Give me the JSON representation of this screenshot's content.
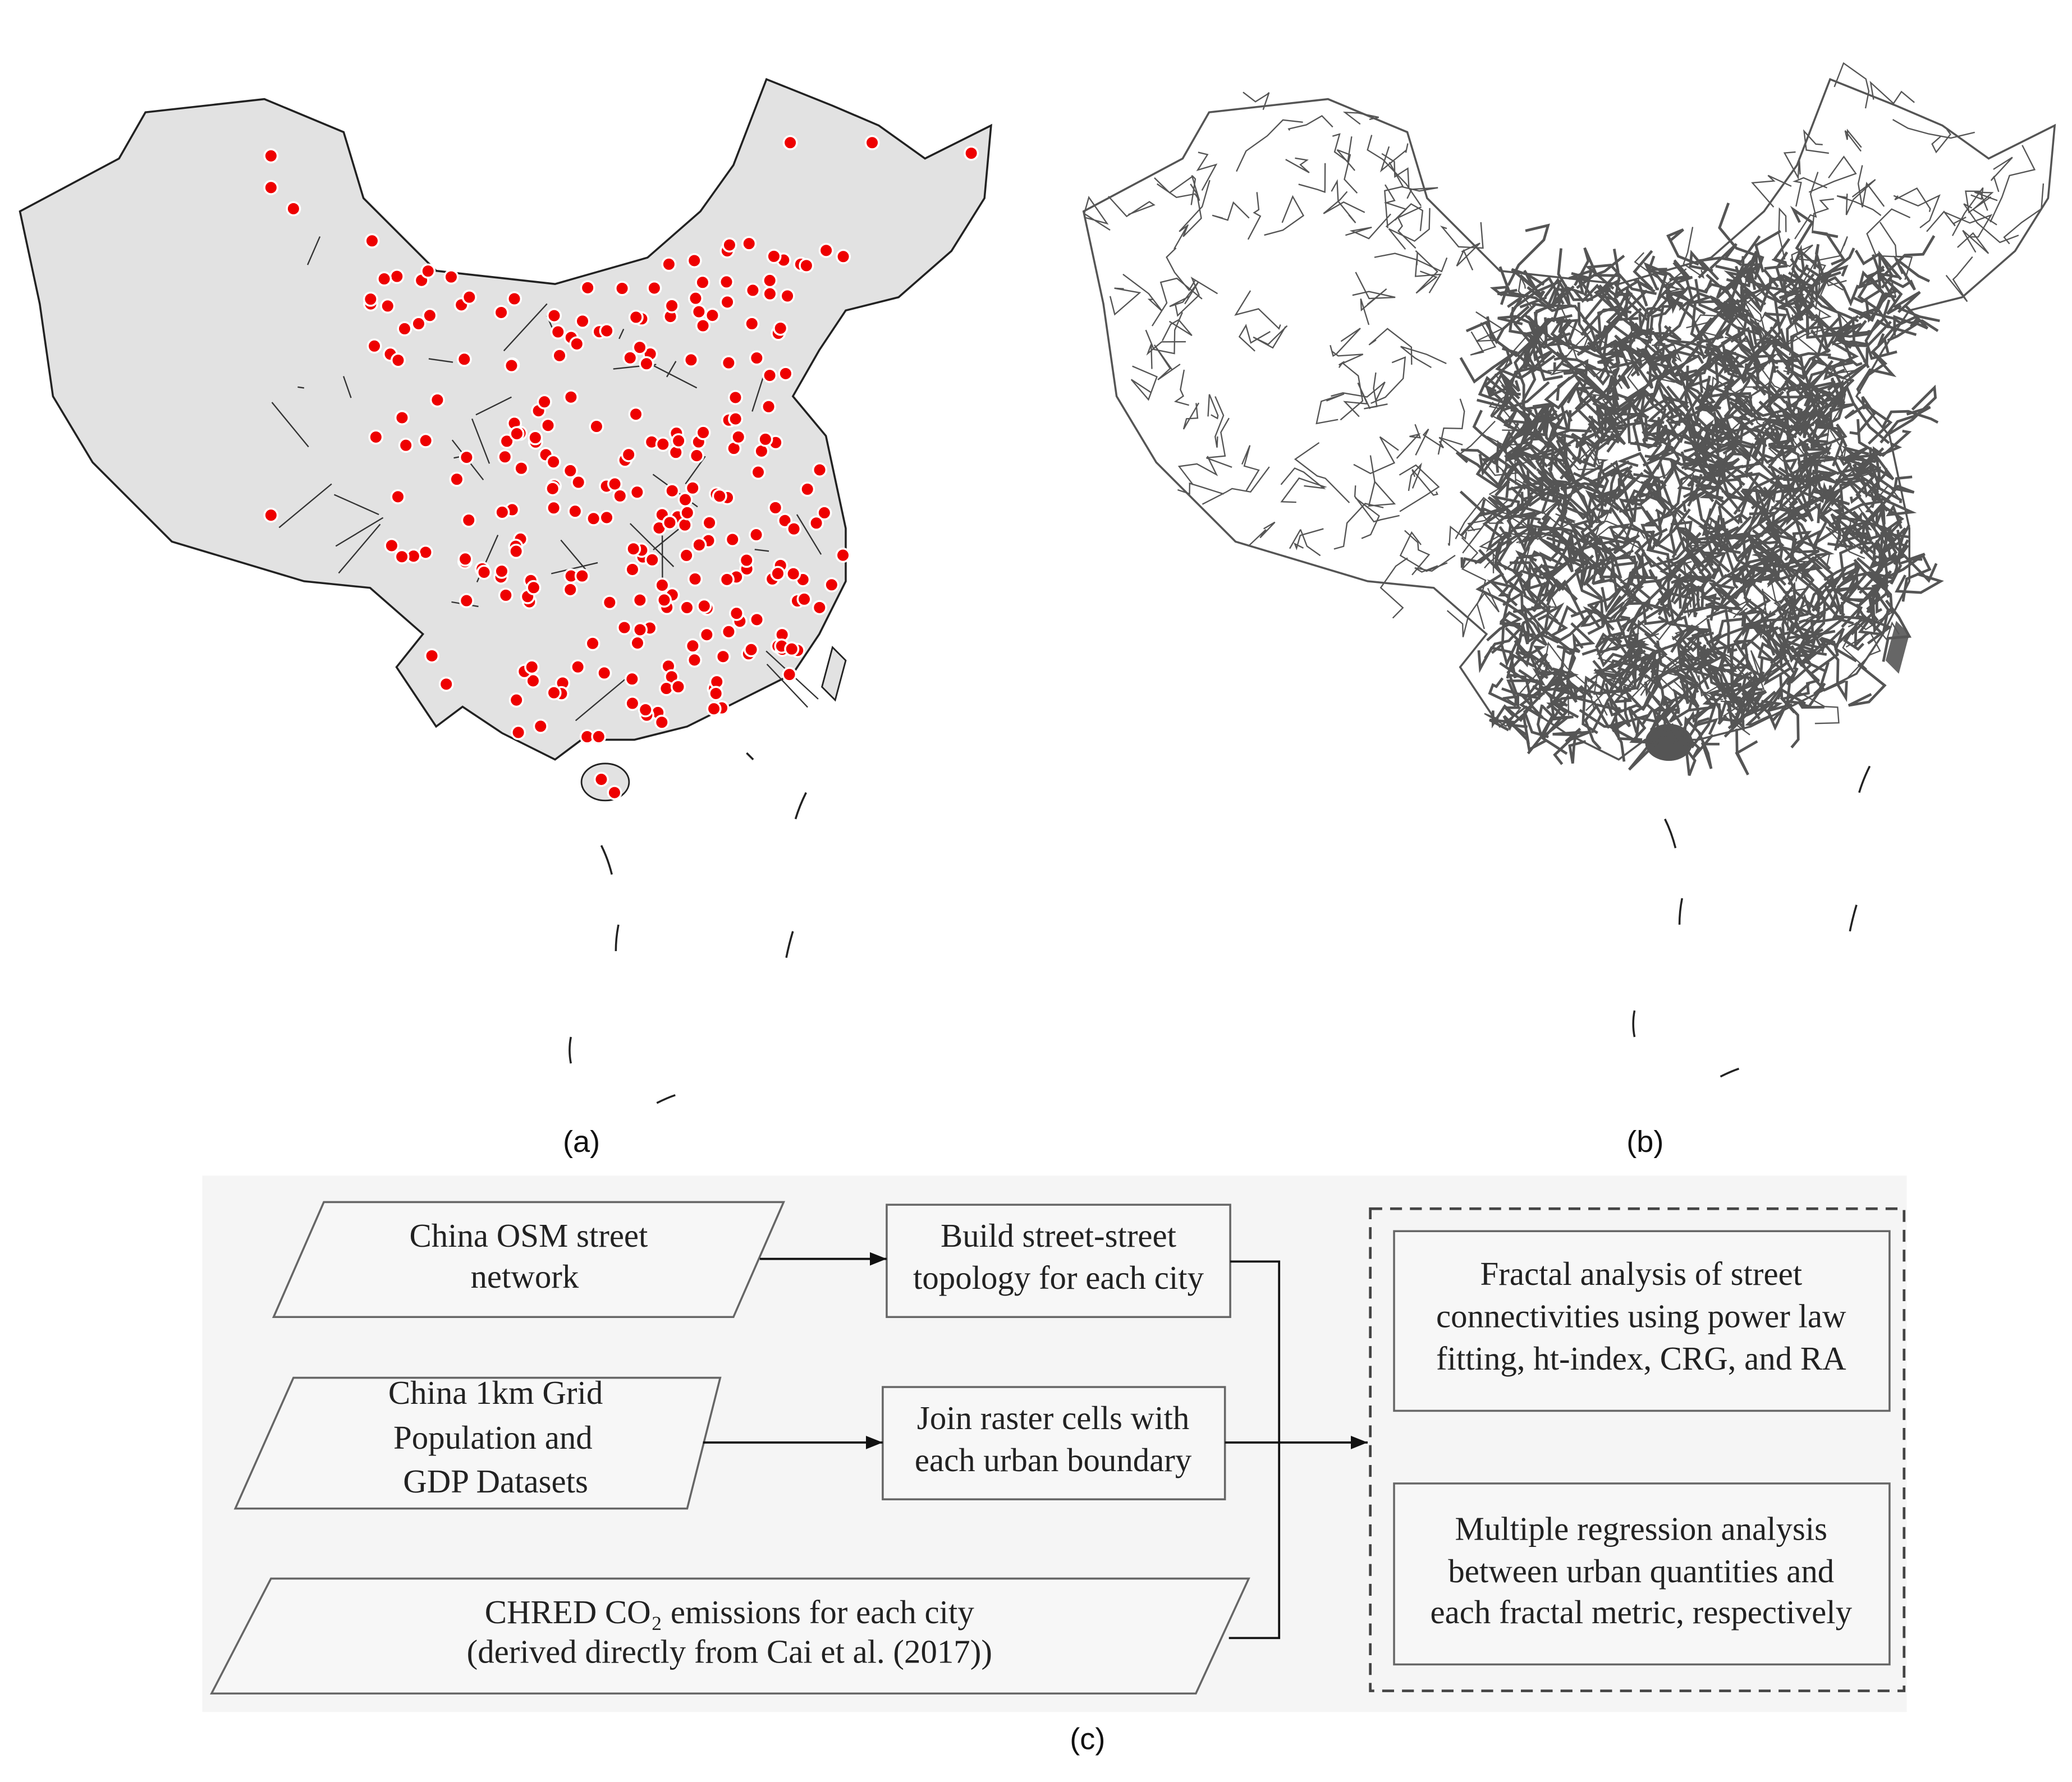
{
  "captions": {
    "a": "(a)",
    "b": "(b)",
    "c": "(c)"
  },
  "flowchart": {
    "inputs": [
      {
        "lines": [
          "China OSM street",
          "network"
        ]
      },
      {
        "lines": [
          "China 1km Grid",
          "Population and",
          "GDP Datasets"
        ]
      },
      {
        "lines": [
          "CHRED CO₂ emissions for each city",
          "(derived directly from Cai et al. (2017))"
        ]
      }
    ],
    "processes": [
      {
        "lines": [
          "Build street-street",
          "topology for each city"
        ]
      },
      {
        "lines": [
          "Join raster cells with",
          "each urban boundary"
        ]
      }
    ],
    "outputs": [
      {
        "lines": [
          "Fractal analysis of street",
          "connectivities using power law",
          "fitting, ht-index, CRG, and RA"
        ]
      },
      {
        "lines": [
          "Multiple regression analysis",
          "between urban quantities and",
          "each fractal metric, respectively"
        ]
      }
    ]
  }
}
